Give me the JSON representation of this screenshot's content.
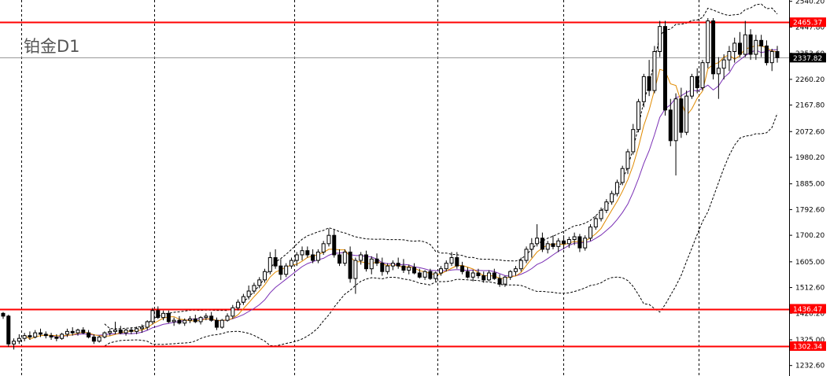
{
  "chart_data": {
    "type": "candlestick",
    "title": "铂金D1",
    "ylim": [
      1195,
      2545
    ],
    "y_ticks": [
      "2540.20",
      "2447.80",
      "2353.60",
      "2260.20",
      "2167.80",
      "2072.60",
      "1980.20",
      "1885.00",
      "1792.60",
      "1700.20",
      "1605.00",
      "1512.60",
      "1420.20",
      "1325.00",
      "1232.60"
    ],
    "grid": "vertical-dashed",
    "current_price": {
      "label": "2337.82",
      "value": 2337.82
    },
    "levels": [
      {
        "label": "2465.37",
        "value": 2465.37
      },
      {
        "label": "1436.47",
        "value": 1436.47
      },
      {
        "label": "1302.34",
        "value": 1302.34
      }
    ],
    "candles": [
      [
        1420,
        1425,
        1400,
        1410
      ],
      [
        1410,
        1415,
        1300,
        1310
      ],
      [
        1310,
        1330,
        1290,
        1320
      ],
      [
        1320,
        1345,
        1310,
        1330
      ],
      [
        1330,
        1350,
        1320,
        1340
      ],
      [
        1340,
        1355,
        1325,
        1335
      ],
      [
        1335,
        1360,
        1330,
        1350
      ],
      [
        1350,
        1365,
        1335,
        1345
      ],
      [
        1345,
        1355,
        1330,
        1340
      ],
      [
        1340,
        1350,
        1325,
        1335
      ],
      [
        1335,
        1345,
        1320,
        1330
      ],
      [
        1330,
        1350,
        1325,
        1345
      ],
      [
        1345,
        1365,
        1335,
        1355
      ],
      [
        1355,
        1370,
        1340,
        1350
      ],
      [
        1350,
        1365,
        1340,
        1360
      ],
      [
        1360,
        1370,
        1345,
        1350
      ],
      [
        1350,
        1360,
        1330,
        1335
      ],
      [
        1335,
        1345,
        1310,
        1320
      ],
      [
        1320,
        1340,
        1315,
        1335
      ],
      [
        1335,
        1355,
        1330,
        1350
      ],
      [
        1350,
        1365,
        1340,
        1355
      ],
      [
        1355,
        1390,
        1345,
        1360
      ],
      [
        1360,
        1375,
        1345,
        1350
      ],
      [
        1350,
        1365,
        1340,
        1360
      ],
      [
        1360,
        1370,
        1345,
        1355
      ],
      [
        1355,
        1372,
        1345,
        1365
      ],
      [
        1365,
        1380,
        1350,
        1370
      ],
      [
        1370,
        1395,
        1360,
        1390
      ],
      [
        1390,
        1440,
        1380,
        1430
      ],
      [
        1430,
        1445,
        1400,
        1405
      ],
      [
        1405,
        1430,
        1395,
        1420
      ],
      [
        1420,
        1430,
        1385,
        1390
      ],
      [
        1390,
        1405,
        1375,
        1395
      ],
      [
        1395,
        1410,
        1380,
        1385
      ],
      [
        1385,
        1402,
        1375,
        1395
      ],
      [
        1395,
        1410,
        1385,
        1400
      ],
      [
        1400,
        1415,
        1385,
        1390
      ],
      [
        1390,
        1410,
        1380,
        1405
      ],
      [
        1405,
        1420,
        1395,
        1410
      ],
      [
        1410,
        1425,
        1390,
        1395
      ],
      [
        1395,
        1405,
        1360,
        1370
      ],
      [
        1370,
        1400,
        1365,
        1395
      ],
      [
        1395,
        1420,
        1390,
        1410
      ],
      [
        1410,
        1450,
        1400,
        1440
      ],
      [
        1440,
        1470,
        1430,
        1460
      ],
      [
        1460,
        1490,
        1450,
        1480
      ],
      [
        1480,
        1520,
        1470,
        1500
      ],
      [
        1500,
        1530,
        1490,
        1520
      ],
      [
        1520,
        1550,
        1510,
        1540
      ],
      [
        1540,
        1580,
        1530,
        1570
      ],
      [
        1570,
        1640,
        1560,
        1620
      ],
      [
        1620,
        1650,
        1580,
        1590
      ],
      [
        1590,
        1615,
        1540,
        1560
      ],
      [
        1560,
        1600,
        1550,
        1590
      ],
      [
        1590,
        1620,
        1580,
        1610
      ],
      [
        1610,
        1640,
        1590,
        1630
      ],
      [
        1630,
        1660,
        1610,
        1645
      ],
      [
        1645,
        1660,
        1620,
        1630
      ],
      [
        1630,
        1650,
        1600,
        1610
      ],
      [
        1610,
        1650,
        1600,
        1640
      ],
      [
        1640,
        1680,
        1630,
        1670
      ],
      [
        1670,
        1725,
        1660,
        1700
      ],
      [
        1700,
        1720,
        1620,
        1630
      ],
      [
        1630,
        1650,
        1590,
        1600
      ],
      [
        1600,
        1650,
        1590,
        1640
      ],
      [
        1640,
        1660,
        1530,
        1545
      ],
      [
        1545,
        1620,
        1490,
        1610
      ],
      [
        1610,
        1640,
        1595,
        1630
      ],
      [
        1630,
        1645,
        1570,
        1580
      ],
      [
        1580,
        1625,
        1560,
        1615
      ],
      [
        1615,
        1635,
        1590,
        1600
      ],
      [
        1600,
        1620,
        1555,
        1570
      ],
      [
        1570,
        1600,
        1560,
        1590
      ],
      [
        1590,
        1610,
        1575,
        1600
      ],
      [
        1600,
        1620,
        1580,
        1590
      ],
      [
        1590,
        1615,
        1565,
        1575
      ],
      [
        1575,
        1595,
        1560,
        1585
      ],
      [
        1585,
        1600,
        1560,
        1565
      ],
      [
        1565,
        1580,
        1545,
        1550
      ],
      [
        1550,
        1575,
        1540,
        1570
      ],
      [
        1570,
        1580,
        1540,
        1545
      ],
      [
        1545,
        1570,
        1535,
        1565
      ],
      [
        1565,
        1590,
        1555,
        1580
      ],
      [
        1580,
        1610,
        1570,
        1600
      ],
      [
        1600,
        1640,
        1590,
        1620
      ],
      [
        1620,
        1640,
        1580,
        1590
      ],
      [
        1590,
        1605,
        1560,
        1570
      ],
      [
        1570,
        1585,
        1545,
        1550
      ],
      [
        1550,
        1575,
        1535,
        1565
      ],
      [
        1565,
        1580,
        1545,
        1555
      ],
      [
        1555,
        1570,
        1530,
        1540
      ],
      [
        1540,
        1575,
        1535,
        1565
      ],
      [
        1565,
        1580,
        1540,
        1545
      ],
      [
        1545,
        1560,
        1515,
        1525
      ],
      [
        1525,
        1555,
        1515,
        1550
      ],
      [
        1550,
        1575,
        1540,
        1570
      ],
      [
        1570,
        1590,
        1555,
        1580
      ],
      [
        1580,
        1620,
        1570,
        1610
      ],
      [
        1610,
        1660,
        1600,
        1650
      ],
      [
        1650,
        1690,
        1620,
        1670
      ],
      [
        1670,
        1740,
        1660,
        1690
      ],
      [
        1690,
        1710,
        1640,
        1650
      ],
      [
        1650,
        1680,
        1635,
        1670
      ],
      [
        1670,
        1700,
        1650,
        1660
      ],
      [
        1660,
        1690,
        1640,
        1680
      ],
      [
        1680,
        1700,
        1650,
        1670
      ],
      [
        1670,
        1695,
        1655,
        1685
      ],
      [
        1685,
        1710,
        1665,
        1695
      ],
      [
        1695,
        1705,
        1640,
        1655
      ],
      [
        1655,
        1700,
        1645,
        1690
      ],
      [
        1690,
        1740,
        1680,
        1730
      ],
      [
        1730,
        1770,
        1720,
        1760
      ],
      [
        1760,
        1800,
        1750,
        1790
      ],
      [
        1790,
        1830,
        1780,
        1820
      ],
      [
        1820,
        1860,
        1810,
        1850
      ],
      [
        1850,
        1900,
        1840,
        1890
      ],
      [
        1890,
        1950,
        1880,
        1940
      ],
      [
        1940,
        2010,
        1920,
        2000
      ],
      [
        2000,
        2100,
        1990,
        2080
      ],
      [
        2080,
        2190,
        2070,
        2180
      ],
      [
        2180,
        2280,
        2160,
        2270
      ],
      [
        2270,
        2330,
        2200,
        2220
      ],
      [
        2220,
        2380,
        2210,
        2360
      ],
      [
        2360,
        2470,
        2340,
        2450
      ],
      [
        2450,
        2470,
        2130,
        2150
      ],
      [
        2150,
        2190,
        2020,
        2040
      ],
      [
        2040,
        2210,
        1915,
        2190
      ],
      [
        2190,
        2230,
        2050,
        2070
      ],
      [
        2070,
        2220,
        2060,
        2200
      ],
      [
        2200,
        2280,
        2190,
        2270
      ],
      [
        2270,
        2300,
        2210,
        2230
      ],
      [
        2230,
        2330,
        2220,
        2320
      ],
      [
        2320,
        2480,
        2300,
        2470
      ],
      [
        2470,
        2480,
        2260,
        2280
      ],
      [
        2280,
        2340,
        2190,
        2300
      ],
      [
        2300,
        2350,
        2260,
        2330
      ],
      [
        2330,
        2380,
        2290,
        2360
      ],
      [
        2360,
        2410,
        2320,
        2390
      ],
      [
        2390,
        2430,
        2340,
        2350
      ],
      [
        2350,
        2470,
        2340,
        2420
      ],
      [
        2420,
        2440,
        2330,
        2350
      ],
      [
        2350,
        2420,
        2330,
        2400
      ],
      [
        2400,
        2420,
        2340,
        2380
      ],
      [
        2380,
        2400,
        2310,
        2320
      ],
      [
        2320,
        2370,
        2290,
        2360
      ],
      [
        2360,
        2380,
        2320,
        2337.82
      ]
    ]
  }
}
